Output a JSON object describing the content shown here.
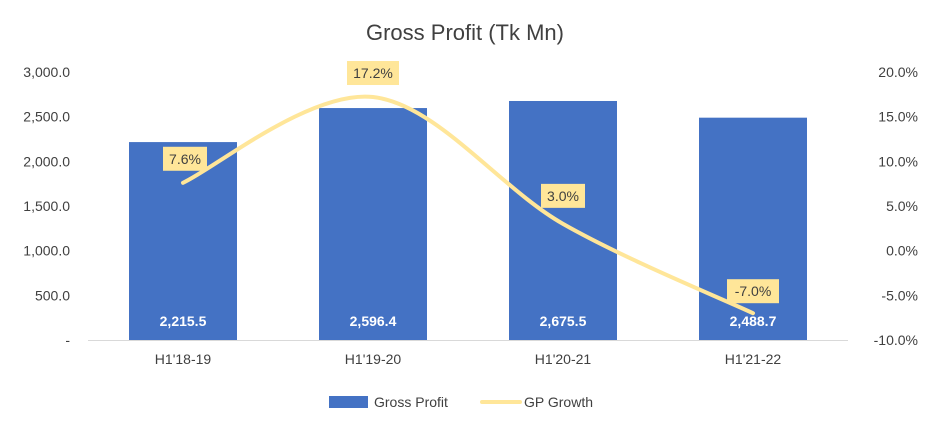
{
  "chart_data": {
    "type": "bar",
    "title": "Gross Profit (Tk Mn)",
    "categories": [
      "H1'18-19",
      "H1'19-20",
      "H1'20-21",
      "H1'21-22"
    ],
    "series": [
      {
        "name": "Gross Profit",
        "type": "bar",
        "axis": "left",
        "color": "#4472C4",
        "values": [
          2215.5,
          2596.4,
          2675.5,
          2488.7
        ],
        "labels": [
          "2,215.5",
          "2,596.4",
          "2,675.5",
          "2,488.7"
        ]
      },
      {
        "name": "GP Growth",
        "type": "line",
        "smooth": true,
        "axis": "right",
        "color": "#FFE699",
        "values": [
          7.6,
          17.2,
          3.0,
          -7.0
        ],
        "labels": [
          "7.6%",
          "17.2%",
          "3.0%",
          "-7.0%"
        ]
      }
    ],
    "y_left": {
      "range": [
        0,
        3000
      ],
      "ticks": [
        0,
        500,
        1000,
        1500,
        2000,
        2500,
        3000
      ],
      "tick_labels": [
        "-",
        "500.0",
        "1,000.0",
        "1,500.0",
        "2,000.0",
        "2,500.0",
        "3,000.0"
      ]
    },
    "y_right": {
      "range": [
        -10,
        20
      ],
      "ticks": [
        -10,
        -5,
        0,
        5,
        10,
        15,
        20
      ],
      "tick_labels": [
        "-10.0%",
        "-5.0%",
        "0.0%",
        "5.0%",
        "10.0%",
        "15.0%",
        "20.0%"
      ]
    },
    "grid": false,
    "legend_position": "bottom",
    "bar_label_color": "#FFFFFF",
    "line_label_bg": "#FFE699",
    "text_color": "#404040"
  }
}
